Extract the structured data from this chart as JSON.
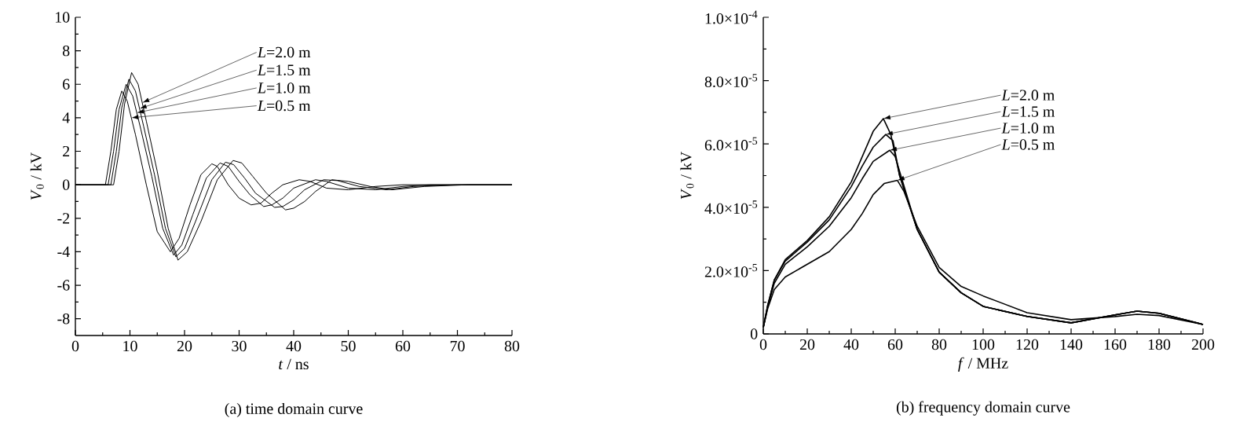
{
  "chart_data": [
    {
      "type": "line",
      "title": "(a) time domain curve",
      "xlabel": "*t* / ns",
      "ylabel": "*V*$_{0}$ / kV",
      "xlim": [
        0,
        80
      ],
      "ylim": [
        -9,
        10
      ],
      "xticks": [
        0,
        10,
        20,
        30,
        40,
        50,
        60,
        70,
        80
      ],
      "yticks": [
        -8,
        -6,
        -4,
        -2,
        0,
        2,
        4,
        6,
        8,
        10
      ],
      "series": [
        {
          "name": "*L*=2.0 m",
          "color": "#000000",
          "x": [
            0,
            7,
            8,
            9,
            10.3,
            11.5,
            13,
            15,
            17,
            18.8,
            20.5,
            23,
            26,
            28.9,
            30.5,
            32.5,
            35,
            38.5,
            40,
            42,
            44,
            47,
            50,
            54,
            58,
            64,
            72,
            80
          ],
          "values": [
            0,
            0,
            2,
            4.8,
            6.7,
            6.0,
            3.8,
            0.8,
            -2.6,
            -4.5,
            -4.0,
            -2.2,
            0.3,
            1.45,
            1.3,
            0.5,
            -0.5,
            -1.5,
            -1.4,
            -1.0,
            -0.4,
            0.3,
            0.2,
            -0.1,
            -0.3,
            -0.1,
            0,
            0
          ]
        },
        {
          "name": "*L*=1.5 m",
          "color": "#000000",
          "x": [
            0,
            6.5,
            7.5,
            8.5,
            9.8,
            11,
            12.5,
            14.5,
            16.5,
            18.4,
            20,
            22,
            25,
            27.5,
            29,
            31,
            33,
            36.5,
            38,
            40,
            42,
            45.5,
            48,
            52,
            57,
            62,
            70,
            80
          ],
          "values": [
            0,
            0,
            2,
            4.6,
            6.3,
            5.6,
            3.5,
            0.6,
            -2.6,
            -4.3,
            -3.8,
            -2.2,
            0.3,
            1.35,
            1.2,
            0.4,
            -0.5,
            -1.35,
            -1.3,
            -0.9,
            -0.3,
            0.3,
            0.25,
            -0.1,
            -0.3,
            -0.1,
            0,
            0
          ]
        },
        {
          "name": "*L*=1.0 m",
          "color": "#000000",
          "x": [
            0,
            6,
            7,
            8,
            9.3,
            10.5,
            12,
            14,
            16,
            18,
            19.5,
            21.5,
            24,
            26.5,
            28,
            30,
            32,
            34.5,
            36,
            38,
            40,
            44,
            46,
            50,
            55,
            60,
            65,
            80
          ],
          "values": [
            0,
            0,
            2,
            4.5,
            6.0,
            5.3,
            3.3,
            0.5,
            -2.6,
            -4.2,
            -3.6,
            -1.8,
            0.4,
            1.3,
            1.1,
            0.2,
            -0.6,
            -1.3,
            -1.2,
            -0.8,
            -0.2,
            0.3,
            0.2,
            -0.2,
            -0.3,
            -0.1,
            0,
            0
          ]
        },
        {
          "name": "*L*=0.5 m",
          "color": "#000000",
          "x": [
            0,
            5.5,
            6.5,
            7.5,
            8.5,
            9.5,
            11,
            13,
            15,
            17.4,
            19,
            21,
            23,
            25,
            26,
            28,
            30,
            32.2,
            34,
            36,
            38,
            41,
            43,
            46,
            50,
            55,
            60,
            70,
            80
          ],
          "values": [
            0,
            0,
            2,
            4.5,
            5.6,
            5.0,
            3.0,
            0,
            -2.8,
            -4.0,
            -3.2,
            -1.2,
            0.6,
            1.25,
            1.1,
            0,
            -0.8,
            -1.2,
            -1.1,
            -0.5,
            0,
            0.3,
            0.2,
            -0.2,
            -0.3,
            -0.1,
            0,
            0,
            0
          ]
        }
      ]
    },
    {
      "type": "line",
      "title": "(b) frequency domain curve",
      "xlabel": "*f* / MHz",
      "ylabel": "*V*$_{0}$ / kV",
      "xlim": [
        0,
        200
      ],
      "ylim": [
        0,
        0.0001
      ],
      "xticks": [
        0,
        20,
        40,
        60,
        80,
        100,
        120,
        140,
        160,
        180,
        200
      ],
      "yticks": [
        0,
        {
          "value": 2e-05,
          "label": "2.0×10$^{-5}$"
        },
        {
          "value": 4e-05,
          "label": "4.0×10$^{-5}$"
        },
        {
          "value": 6e-05,
          "label": "6.0×10$^{-5}$"
        },
        {
          "value": 8e-05,
          "label": "8.0×10$^{-5}$"
        },
        {
          "value": 0.0001,
          "label": "1.0×10$^{-4}$"
        }
      ],
      "series": [
        {
          "name": "*L*=2.0 m",
          "color": "#000000",
          "x": [
            0,
            2,
            5,
            10,
            20,
            30,
            40,
            45,
            50,
            54.6,
            58,
            62,
            70,
            80,
            90,
            100,
            120,
            140,
            160,
            170,
            180,
            200
          ],
          "values": [
            2e-06,
            9e-06,
            1.7e-05,
            2.35e-05,
            2.95e-05,
            3.7e-05,
            4.8e-05,
            5.6e-05,
            6.4e-05,
            6.8e-05,
            6.3e-05,
            5e-05,
            3.3e-05,
            1.95e-05,
            1.3e-05,
            8.7e-06,
            5.5e-06,
            3.5e-06,
            6e-06,
            7.2e-06,
            6.5e-06,
            3e-06
          ]
        },
        {
          "name": "*L*=1.5 m",
          "color": "#000000",
          "x": [
            0,
            2,
            5,
            10,
            20,
            30,
            40,
            45,
            50,
            55.7,
            59,
            62,
            70,
            80,
            90,
            100,
            120,
            140,
            160,
            170,
            180,
            200
          ],
          "values": [
            2e-06,
            9e-06,
            1.7e-05,
            2.3e-05,
            2.9e-05,
            3.6e-05,
            4.65e-05,
            5.3e-05,
            5.9e-05,
            6.3e-05,
            6.1e-05,
            5e-05,
            3.3e-05,
            1.95e-05,
            1.3e-05,
            8.7e-06,
            5.5e-06,
            3.5e-06,
            6e-06,
            7.2e-06,
            6.5e-06,
            3e-06
          ]
        },
        {
          "name": "*L*=1.0 m",
          "color": "#000000",
          "x": [
            0,
            2,
            5,
            10,
            20,
            30,
            40,
            45,
            50,
            57.5,
            60,
            63,
            70,
            80,
            90,
            100,
            120,
            140,
            160,
            170,
            180,
            200
          ],
          "values": [
            2e-06,
            8.5e-06,
            1.6e-05,
            2.2e-05,
            2.75e-05,
            3.4e-05,
            4.3e-05,
            4.9e-05,
            5.45e-05,
            5.8e-05,
            5.6e-05,
            4.9e-05,
            3.3e-05,
            1.95e-05,
            1.3e-05,
            8.7e-06,
            5.5e-06,
            3.5e-06,
            6e-06,
            7.2e-06,
            6.5e-06,
            3e-06
          ]
        },
        {
          "name": "*L*=0.5 m",
          "color": "#000000",
          "x": [
            0,
            2,
            5,
            10,
            20,
            30,
            40,
            45,
            50,
            55,
            61,
            64,
            70,
            80,
            90,
            100,
            120,
            140,
            160,
            170,
            180,
            200
          ],
          "values": [
            2e-06,
            8e-06,
            1.4e-05,
            1.8e-05,
            2.2e-05,
            2.6e-05,
            3.3e-05,
            3.8e-05,
            4.4e-05,
            4.75e-05,
            4.85e-05,
            4.5e-05,
            3.4e-05,
            2.1e-05,
            1.5e-05,
            1.2e-05,
            6.7e-06,
            4.5e-06,
            5.5e-06,
            6.2e-06,
            5.8e-06,
            3e-06
          ]
        }
      ]
    }
  ]
}
